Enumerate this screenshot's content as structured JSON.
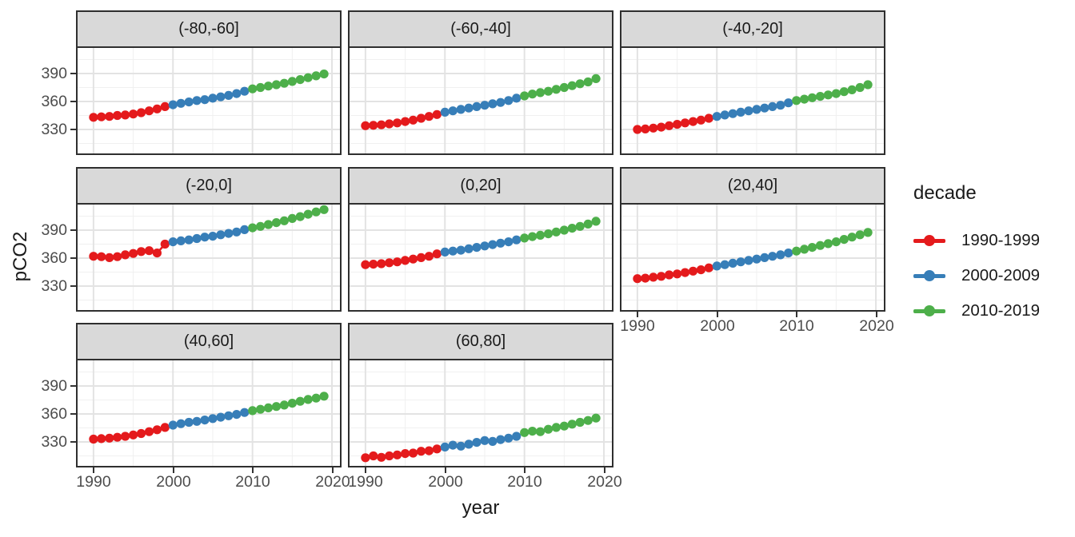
{
  "chart_data": {
    "type": "scatter",
    "title": "",
    "xlabel": "year",
    "ylabel": "pCO2",
    "x_ticks": [
      1990,
      2000,
      2010,
      2020
    ],
    "x_minor_gridlines": [
      1995,
      2005,
      2015
    ],
    "y_ticks": [
      330,
      360,
      390
    ],
    "y_minor_gridlines": [
      315,
      345,
      375,
      405
    ],
    "x_domain": [
      1988,
      2021
    ],
    "y_domain": [
      304.3,
      417.4
    ],
    "grid": "on",
    "years": [
      1990,
      1991,
      1992,
      1993,
      1994,
      1995,
      1996,
      1997,
      1998,
      1999,
      2000,
      2001,
      2002,
      2003,
      2004,
      2005,
      2006,
      2007,
      2008,
      2009,
      2010,
      2011,
      2012,
      2013,
      2014,
      2015,
      2016,
      2017,
      2018,
      2019
    ],
    "legend": {
      "title": "decade",
      "position": "right"
    },
    "decades": [
      {
        "label": "1990-1999",
        "color": "#E41A1C",
        "start_year": 1990,
        "end_year": 1999
      },
      {
        "label": "2000-2009",
        "color": "#377EB8",
        "start_year": 2000,
        "end_year": 2009
      },
      {
        "label": "2010-2019",
        "color": "#4DAF4A",
        "start_year": 2010,
        "end_year": 2019
      }
    ],
    "facets": [
      {
        "label": "(-80,-60]",
        "values": [
          343,
          343.5,
          344,
          345,
          345.5,
          346.5,
          348,
          350,
          352,
          354.5,
          356.5,
          358,
          359.5,
          361,
          362,
          363.5,
          365,
          366.5,
          368.5,
          371,
          373.5,
          375,
          376.5,
          378,
          379.5,
          381.5,
          383.5,
          385.5,
          387.5,
          389.5
        ]
      },
      {
        "label": "(-60,-40]",
        "values": [
          334,
          334.5,
          335,
          336,
          337,
          338.5,
          340,
          342,
          344,
          346,
          348.5,
          350,
          351.5,
          353,
          354.5,
          356,
          357.5,
          359,
          361,
          363.5,
          366,
          368,
          369.5,
          371,
          373,
          375,
          377,
          379,
          381,
          384.5
        ]
      },
      {
        "label": "(-40,-20]",
        "values": [
          330,
          330.5,
          331.5,
          332.5,
          334,
          335.5,
          337,
          338.5,
          340,
          342,
          344,
          345.5,
          347,
          348.5,
          350,
          351.5,
          353,
          354.5,
          356,
          358.5,
          361,
          362.5,
          364,
          365.5,
          367,
          368.5,
          370.5,
          372.5,
          375,
          378
        ]
      },
      {
        "label": "(-20,0]",
        "values": [
          362,
          361.5,
          360.5,
          361.5,
          363.5,
          365,
          367,
          368,
          365.5,
          375,
          377.5,
          378.5,
          379.5,
          381,
          382.5,
          383.5,
          385,
          386.5,
          388,
          390.5,
          392.5,
          394,
          396,
          398,
          400,
          402.5,
          404.5,
          407,
          409.5,
          412
        ]
      },
      {
        "label": "(0,20]",
        "values": [
          353,
          353.5,
          354,
          355,
          356,
          357.5,
          359,
          360.5,
          362,
          364.5,
          366.5,
          367.5,
          368.5,
          370,
          371.5,
          373,
          374.5,
          376,
          377.5,
          379.5,
          381.5,
          383,
          384.5,
          386,
          388,
          390,
          392,
          394,
          396.5,
          399.5
        ]
      },
      {
        "label": "(20,40]",
        "values": [
          338,
          338.5,
          339.5,
          340.5,
          342,
          343,
          344.5,
          346,
          347.5,
          349.5,
          351.5,
          353,
          354.5,
          356,
          357.5,
          359,
          360.5,
          362,
          363.5,
          365.5,
          367.5,
          369.5,
          371.5,
          373.5,
          375.5,
          377.5,
          380,
          382.5,
          385,
          387.5
        ]
      },
      {
        "label": "(40,60]",
        "values": [
          333,
          333.5,
          334,
          335,
          336,
          337.5,
          339,
          341,
          343,
          345.5,
          348,
          349.5,
          351,
          352,
          353.5,
          355,
          356.5,
          358,
          359.5,
          361.5,
          363.5,
          365,
          366.5,
          368,
          369.5,
          371.5,
          373.5,
          375.5,
          377,
          379
        ]
      },
      {
        "label": "(60,80]",
        "values": [
          313,
          315,
          313.5,
          315,
          316,
          317.5,
          318,
          320,
          320.5,
          322.5,
          324.5,
          326.5,
          325.5,
          327.5,
          329.5,
          331.5,
          330.5,
          332.5,
          334,
          336,
          340,
          341.5,
          341,
          343.5,
          345.5,
          347,
          349,
          351,
          353,
          355.5
        ]
      }
    ]
  }
}
